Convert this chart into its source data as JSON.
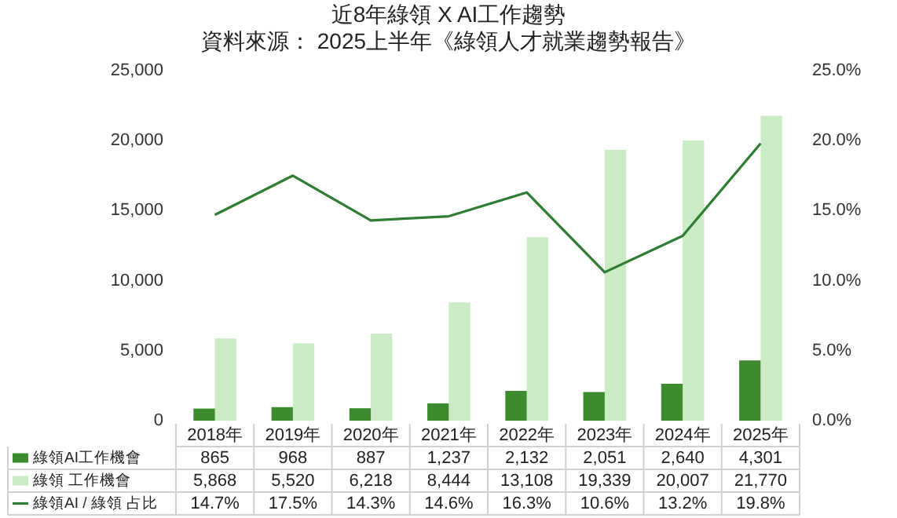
{
  "chart_data": {
    "type": "bar",
    "title": "近8年綠領 X AI工作趨勢",
    "subtitle": "資料來源： 2025上半年《綠領人才就業趨勢報告》",
    "categories": [
      "2018年",
      "2019年",
      "2020年",
      "2021年",
      "2022年",
      "2023年",
      "2024年",
      "2025年"
    ],
    "series": [
      {
        "name": "綠領AI工作機會",
        "color": "#3d8b2f",
        "values": [
          865,
          968,
          887,
          1237,
          2132,
          2051,
          2640,
          4301
        ],
        "value_labels": [
          "865",
          "968",
          "887",
          "1,237",
          "2,132",
          "2,051",
          "2,640",
          "4,301"
        ]
      },
      {
        "name": "綠領 工作機會",
        "color": "#c9ecc4",
        "values": [
          5868,
          5520,
          6218,
          8444,
          13108,
          19339,
          20007,
          21770
        ],
        "value_labels": [
          "5,868",
          "5,520",
          "6,218",
          "8,444",
          "13,108",
          "19,339",
          "20,007",
          "21,770"
        ]
      },
      {
        "name": "綠領AI / 綠領 占比",
        "type": "line",
        "axis": "y2",
        "color": "#2f7d32",
        "values": [
          14.7,
          17.5,
          14.3,
          14.6,
          16.3,
          10.6,
          13.2,
          19.8
        ],
        "value_labels": [
          "14.7%",
          "17.5%",
          "14.3%",
          "14.6%",
          "16.3%",
          "10.6%",
          "13.2%",
          "19.8%"
        ]
      }
    ],
    "ylim": [
      0,
      25000
    ],
    "yticks": [
      0,
      {
        "value": 5000,
        "label": "5,000"
      },
      {
        "value": 10000,
        "label": "10,000"
      },
      {
        "value": 15000,
        "label": "15,000"
      },
      {
        "value": 20000,
        "label": "20,000"
      },
      {
        "value": 25000,
        "label": "25,000"
      }
    ],
    "y2lim": [
      0,
      25
    ],
    "y2ticks": [
      {
        "value": 0,
        "label": "0.0%"
      },
      {
        "value": 5,
        "label": "5.0%"
      },
      {
        "value": 10,
        "label": "10.0%"
      },
      {
        "value": 15,
        "label": "15.0%"
      },
      {
        "value": 20,
        "label": "20.0%"
      },
      {
        "value": 25,
        "label": "25.0%"
      }
    ],
    "legend": "bottom"
  }
}
